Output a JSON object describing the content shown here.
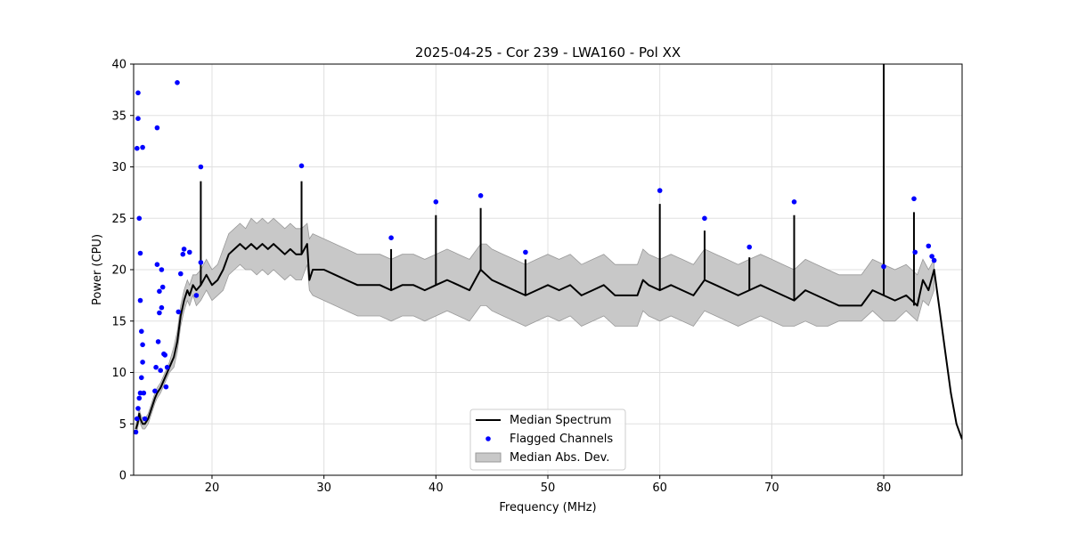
{
  "chart_data": {
    "type": "line",
    "title": "2025-04-25 - Cor 239 - LWA160 - Pol XX",
    "xlabel": "Frequency (MHz)",
    "ylabel": "Power (CPU)",
    "xlim": [
      13.0,
      87.0
    ],
    "ylim": [
      0,
      40
    ],
    "x_ticks": [
      20,
      30,
      40,
      50,
      60,
      70,
      80
    ],
    "y_ticks": [
      0,
      5,
      10,
      15,
      20,
      25,
      30,
      35,
      40
    ],
    "x_tick_labels": [
      "20",
      "30",
      "40",
      "50",
      "60",
      "70",
      "80"
    ],
    "y_tick_labels": [
      "0",
      "5",
      "10",
      "15",
      "20",
      "25",
      "30",
      "35",
      "40"
    ],
    "grid": true,
    "legend_position": "bottom-center",
    "legend": [
      "Median Spectrum",
      "Flagged Channels",
      "Median Abs. Dev."
    ],
    "colors": {
      "median": "#000000",
      "flagged": "#0000ff",
      "band_fill": "#c8c8c8",
      "band_edge": "#999999",
      "grid": "#e0e0e0"
    },
    "series": [
      {
        "name": "Median Spectrum",
        "x": [
          13.2,
          13.35,
          13.5,
          13.6,
          13.8,
          14.0,
          14.3,
          14.6,
          14.9,
          15.1,
          15.4,
          15.8,
          16.2,
          16.6,
          16.9,
          17.2,
          17.5,
          17.8,
          18.0,
          18.3,
          18.6,
          19.0,
          19.5,
          20.0,
          20.5,
          21.0,
          21.5,
          22.0,
          22.5,
          23.0,
          23.5,
          24.0,
          24.5,
          25.0,
          25.5,
          26.0,
          26.5,
          27.0,
          27.5,
          28.0,
          28.5,
          28.7,
          29.0,
          30.0,
          31.0,
          32.0,
          33.0,
          34.0,
          35.0,
          36.0,
          37.0,
          38.0,
          39.0,
          40.0,
          41.0,
          42.0,
          43.0,
          44.0,
          44.5,
          45.0,
          46.0,
          47.0,
          48.0,
          49.0,
          50.0,
          51.0,
          52.0,
          53.0,
          54.0,
          55.0,
          56.0,
          57.0,
          58.0,
          58.5,
          59.0,
          60.0,
          61.0,
          62.0,
          63.0,
          64.0,
          65.0,
          66.0,
          67.0,
          68.0,
          69.0,
          70.0,
          71.0,
          72.0,
          73.0,
          74.0,
          75.0,
          76.0,
          77.0,
          78.0,
          79.0,
          80.0,
          81.0,
          82.0,
          83.0,
          83.5,
          84.0,
          84.5,
          85.0,
          85.5,
          86.0,
          86.5,
          87.0
        ],
        "values": [
          4.5,
          5.0,
          6.0,
          5.5,
          5.0,
          5.0,
          5.5,
          6.5,
          7.5,
          8.0,
          8.5,
          9.5,
          10.5,
          11.5,
          13.0,
          15.5,
          17.0,
          18.0,
          17.5,
          18.5,
          18.0,
          18.5,
          19.5,
          18.5,
          19.0,
          20.0,
          21.5,
          22.0,
          22.5,
          22.0,
          22.5,
          22.0,
          22.5,
          22.0,
          22.5,
          22.0,
          21.5,
          22.0,
          21.5,
          21.5,
          22.5,
          19.0,
          20.0,
          20.0,
          19.5,
          19.0,
          18.5,
          18.5,
          18.5,
          18.0,
          18.5,
          18.5,
          18.0,
          18.5,
          19.0,
          18.5,
          18.0,
          20.0,
          19.5,
          19.0,
          18.5,
          18.0,
          17.5,
          18.0,
          18.5,
          18.0,
          18.5,
          17.5,
          18.0,
          18.5,
          17.5,
          17.5,
          17.5,
          19.0,
          18.5,
          18.0,
          18.5,
          18.0,
          17.5,
          19.0,
          18.5,
          18.0,
          17.5,
          18.0,
          18.5,
          18.0,
          17.5,
          17.0,
          18.0,
          17.5,
          17.0,
          16.5,
          16.5,
          16.5,
          18.0,
          17.5,
          17.0,
          17.5,
          16.5,
          19.0,
          18.0,
          20.0,
          16.0,
          12.0,
          8.0,
          5.0,
          3.5
        ]
      },
      {
        "name": "Median Abs. Dev.",
        "x": [
          13.2,
          13.35,
          13.5,
          13.6,
          13.8,
          14.0,
          14.3,
          14.6,
          14.9,
          15.1,
          15.4,
          15.8,
          16.2,
          16.6,
          16.9,
          17.2,
          17.5,
          17.8,
          18.0,
          18.3,
          18.6,
          19.0,
          19.5,
          20.0,
          20.5,
          21.0,
          21.5,
          22.0,
          22.5,
          23.0,
          23.5,
          24.0,
          24.5,
          25.0,
          25.5,
          26.0,
          26.5,
          27.0,
          27.5,
          28.0,
          28.5,
          28.7,
          29.0,
          30.0,
          31.0,
          32.0,
          33.0,
          34.0,
          35.0,
          36.0,
          37.0,
          38.0,
          39.0,
          40.0,
          41.0,
          42.0,
          43.0,
          44.0,
          44.5,
          45.0,
          46.0,
          47.0,
          48.0,
          49.0,
          50.0,
          51.0,
          52.0,
          53.0,
          54.0,
          55.0,
          56.0,
          57.0,
          58.0,
          58.5,
          59.0,
          60.0,
          61.0,
          62.0,
          63.0,
          64.0,
          65.0,
          66.0,
          67.0,
          68.0,
          69.0,
          70.0,
          71.0,
          72.0,
          73.0,
          74.0,
          75.0,
          76.0,
          77.0,
          78.0,
          79.0,
          80.0,
          81.0,
          82.0,
          83.0,
          83.5,
          84.0,
          84.5
        ],
        "upper": [
          5.0,
          5.5,
          6.5,
          6.0,
          5.5,
          5.5,
          6.0,
          7.0,
          8.0,
          8.5,
          9.0,
          10.0,
          11.0,
          12.5,
          14.0,
          16.5,
          18.0,
          19.0,
          18.5,
          19.5,
          19.5,
          20.0,
          21.0,
          20.0,
          20.5,
          22.0,
          23.5,
          24.0,
          24.5,
          24.0,
          25.0,
          24.5,
          25.0,
          24.5,
          25.0,
          24.5,
          24.0,
          24.5,
          24.0,
          24.0,
          24.5,
          23.0,
          23.5,
          23.0,
          22.5,
          22.0,
          21.5,
          21.5,
          21.5,
          21.0,
          21.5,
          21.5,
          21.0,
          21.5,
          22.0,
          21.5,
          21.0,
          22.5,
          22.5,
          22.0,
          21.5,
          21.0,
          20.5,
          21.0,
          21.5,
          21.0,
          21.5,
          20.5,
          21.0,
          21.5,
          20.5,
          20.5,
          20.5,
          22.0,
          21.5,
          21.0,
          21.5,
          21.0,
          20.5,
          22.0,
          21.5,
          21.0,
          20.5,
          21.0,
          21.5,
          21.0,
          20.5,
          20.0,
          21.0,
          20.5,
          20.0,
          19.5,
          19.5,
          19.5,
          21.0,
          20.5,
          20.0,
          20.5,
          19.5,
          21.0,
          20.0,
          21.0
        ],
        "lower": [
          4.0,
          4.5,
          5.5,
          5.0,
          4.5,
          4.5,
          5.0,
          6.0,
          7.0,
          7.5,
          8.0,
          9.0,
          10.0,
          10.5,
          12.0,
          14.5,
          16.0,
          17.0,
          16.5,
          17.5,
          16.5,
          17.0,
          18.0,
          17.0,
          17.5,
          18.0,
          19.5,
          20.0,
          20.5,
          20.0,
          20.0,
          19.5,
          20.0,
          19.5,
          20.0,
          19.5,
          19.0,
          19.5,
          19.0,
          19.0,
          20.5,
          18.0,
          17.5,
          17.0,
          16.5,
          16.0,
          15.5,
          15.5,
          15.5,
          15.0,
          15.5,
          15.5,
          15.0,
          15.5,
          16.0,
          15.5,
          15.0,
          16.5,
          16.5,
          16.0,
          15.5,
          15.0,
          14.5,
          15.0,
          15.5,
          15.0,
          15.5,
          14.5,
          15.0,
          15.5,
          14.5,
          14.5,
          14.5,
          16.0,
          15.5,
          15.0,
          15.5,
          15.0,
          14.5,
          16.0,
          15.5,
          15.0,
          14.5,
          15.0,
          15.5,
          15.0,
          14.5,
          14.5,
          15.0,
          14.5,
          14.5,
          15.0,
          15.0,
          15.0,
          16.0,
          15.0,
          15.0,
          16.0,
          15.0,
          17.0,
          16.5,
          18.0
        ]
      },
      {
        "name": "Flagged Channels",
        "x": [
          13.2,
          13.3,
          13.4,
          13.5,
          13.6,
          13.7,
          13.8,
          13.3,
          13.4,
          13.5,
          13.6,
          13.7,
          13.8,
          13.9,
          13.4,
          13.6,
          13.8,
          14.0,
          14.9,
          15.0,
          15.1,
          15.2,
          15.3,
          15.4,
          15.5,
          15.6,
          15.7,
          15.8,
          15.9,
          16.0,
          15.1,
          15.3,
          15.5,
          16.9,
          17.0,
          17.2,
          17.4,
          17.5,
          18.0,
          18.6,
          19.0,
          19.0,
          28.0,
          36.0,
          40.0,
          44.0,
          48.0,
          60.0,
          64.0,
          68.0,
          72.0,
          80.0,
          82.7,
          82.8,
          84.0,
          84.3,
          84.5
        ],
        "values": [
          4.2,
          5.5,
          6.5,
          7.5,
          8.0,
          9.5,
          11.0,
          31.8,
          34.7,
          25.0,
          21.6,
          14.0,
          12.7,
          8.0,
          37.2,
          17.0,
          31.9,
          5.5,
          8.2,
          10.5,
          20.5,
          13.0,
          15.8,
          10.2,
          16.3,
          18.3,
          11.8,
          11.7,
          8.6,
          10.5,
          33.8,
          17.9,
          20.0,
          38.2,
          15.9,
          19.6,
          21.5,
          22.0,
          21.7,
          17.5,
          20.7,
          30.0,
          30.1,
          23.1,
          26.6,
          27.2,
          21.7,
          27.7,
          25.0,
          22.2,
          26.6,
          20.3,
          26.9,
          21.7,
          22.3,
          21.3,
          20.9
        ]
      }
    ],
    "spikes": {
      "x": [
        19.0,
        28.0,
        36.0,
        40.0,
        44.0,
        48.0,
        60.0,
        64.0,
        68.0,
        72.0,
        80.0,
        82.7
      ],
      "base": [
        18.5,
        21.5,
        18.0,
        18.5,
        20.0,
        17.5,
        18.0,
        19.0,
        18.0,
        17.0,
        17.5,
        16.5
      ],
      "peak": [
        28.6,
        28.6,
        22.0,
        25.3,
        26.0,
        21.0,
        26.4,
        23.8,
        21.2,
        25.3,
        40.0,
        25.6
      ]
    }
  }
}
